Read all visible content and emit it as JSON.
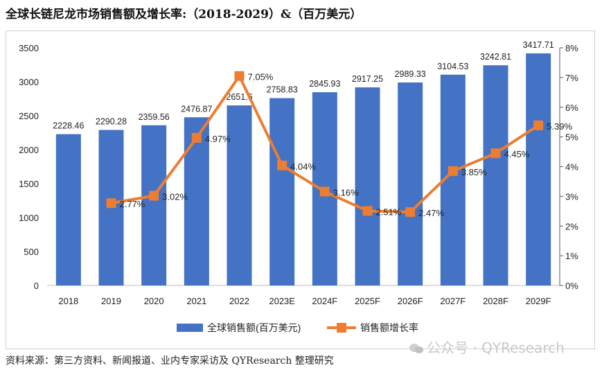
{
  "title": "全球长链尼龙市场销售额及增长率:（2018-2029）&（百万美元）",
  "source": "资料来源：第三方资料、新闻报道、业内专家采访及 QYResearch 整理研究",
  "watermark": "公众号 · QYResearch",
  "colors": {
    "bar": "#4472C4",
    "line": "#ED7D31",
    "axis": "#595959",
    "grid": "#d9d9d9"
  },
  "chart_data": {
    "type": "bar",
    "categories": [
      "2018",
      "2019",
      "2020",
      "2021",
      "2022",
      "2023E",
      "2024F",
      "2025F",
      "2026F",
      "2027F",
      "2028F",
      "2029F"
    ],
    "series": [
      {
        "name": "全球销售额(百万美元)",
        "type": "bar",
        "axis": "left",
        "values": [
          2228.46,
          2290.28,
          2359.56,
          2476.87,
          2651.6,
          2758.83,
          2845.93,
          2917.25,
          2989.33,
          3104.53,
          3242.81,
          3417.71
        ],
        "labels": [
          "2228.46",
          "2290.28",
          "2359.56",
          "2476.87",
          "2651.6",
          "2758.83",
          "2845.93",
          "2917.25",
          "2989.33",
          "3104.53",
          "3242.81",
          "3417.71"
        ]
      },
      {
        "name": "销售额增长率",
        "type": "line",
        "axis": "right",
        "values": [
          null,
          2.77,
          3.02,
          4.97,
          7.05,
          4.04,
          3.16,
          2.51,
          2.47,
          3.85,
          4.45,
          5.39
        ],
        "labels": [
          "",
          "2.77%",
          "3.02%",
          "4.97%",
          "7.05%",
          "4.04%",
          "3.16%",
          "2.51%",
          "2.47%",
          "3.85%",
          "4.45%",
          "5.39%"
        ]
      }
    ],
    "y_left": {
      "min": 0,
      "max": 3500,
      "ticks": [
        "0",
        "500",
        "1000",
        "1500",
        "2000",
        "2500",
        "3000",
        "3500"
      ]
    },
    "y_right": {
      "min": 0,
      "max": 8,
      "ticks": [
        "0%",
        "1%",
        "2%",
        "3%",
        "4%",
        "5%",
        "6%",
        "7%",
        "8%"
      ]
    },
    "legend_position": "bottom"
  }
}
